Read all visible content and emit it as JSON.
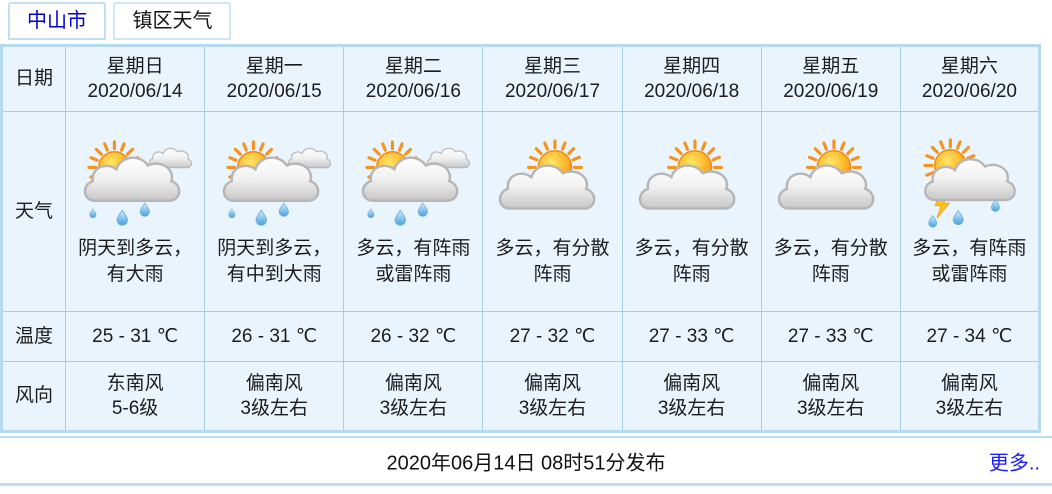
{
  "tabs": [
    {
      "label": "中山市",
      "active": true
    },
    {
      "label": "镇区天气",
      "active": false
    }
  ],
  "table": {
    "row_labels": {
      "date": "日期",
      "weather": "天气",
      "temperature": "温度",
      "wind": "风向"
    },
    "days": [
      {
        "weekday": "星期日",
        "date": "2020/06/14",
        "icon": "sun-clouds-rain",
        "weather": "阴天到多云，有大雨",
        "temperature": "25 - 31 ℃",
        "wind_direction": "东南风",
        "wind_scale": "5-6级"
      },
      {
        "weekday": "星期一",
        "date": "2020/06/15",
        "icon": "sun-clouds-rain",
        "weather": "阴天到多云，有中到大雨",
        "temperature": "26 - 31 ℃",
        "wind_direction": "偏南风",
        "wind_scale": "3级左右"
      },
      {
        "weekday": "星期二",
        "date": "2020/06/16",
        "icon": "sun-clouds-rain",
        "weather": "多云，有阵雨或雷阵雨",
        "temperature": "26 - 32 ℃",
        "wind_direction": "偏南风",
        "wind_scale": "3级左右"
      },
      {
        "weekday": "星期三",
        "date": "2020/06/17",
        "icon": "sun-cloud",
        "weather": "多云，有分散阵雨",
        "temperature": "27 - 32 ℃",
        "wind_direction": "偏南风",
        "wind_scale": "3级左右"
      },
      {
        "weekday": "星期四",
        "date": "2020/06/18",
        "icon": "sun-cloud",
        "weather": "多云，有分散阵雨",
        "temperature": "27 - 33 ℃",
        "wind_direction": "偏南风",
        "wind_scale": "3级左右"
      },
      {
        "weekday": "星期五",
        "date": "2020/06/19",
        "icon": "sun-cloud",
        "weather": "多云，有分散阵雨",
        "temperature": "27 - 33 ℃",
        "wind_direction": "偏南风",
        "wind_scale": "3级左右"
      },
      {
        "weekday": "星期六",
        "date": "2020/06/20",
        "icon": "sun-cloud-thunder-rain",
        "weather": "多云，有阵雨或雷阵雨",
        "temperature": "27 - 34 ℃",
        "wind_direction": "偏南风",
        "wind_scale": "3级左右"
      }
    ]
  },
  "footer": {
    "publish": "2020年06月14日 08时51分发布",
    "more": "更多.."
  },
  "colors": {
    "cell_bg": "#eaf4fc",
    "cell_border": "#a8cfe8",
    "outer_border": "#b5d9ee",
    "tab_active_text": "#0101cb",
    "link": "#1a1aff",
    "sun_orange": "#f68712",
    "drop_blue": "#7cc0ec"
  }
}
